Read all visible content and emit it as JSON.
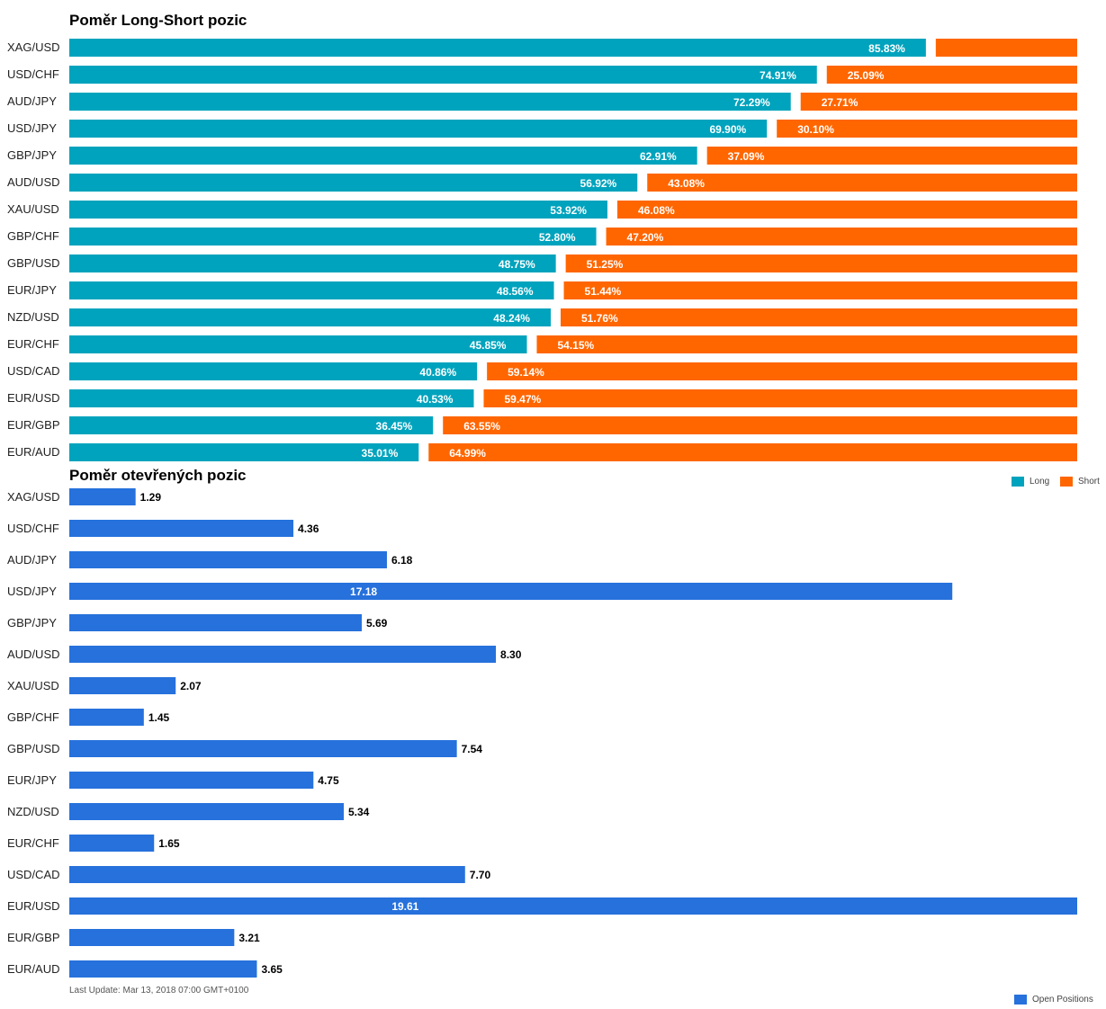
{
  "long_short": {
    "title": "Poměr Long-Short pozic",
    "legend": {
      "long_label": "Long",
      "short_label": "Short"
    },
    "colors": {
      "long": "#00A3BD",
      "short": "#FF6600"
    }
  },
  "open_positions": {
    "title": "Poměr otevřených pozic",
    "legend": {
      "label": "Open Positions"
    },
    "colors": {
      "bar": "#2671DC"
    }
  },
  "footer": {
    "last_update": "Last Update: Mar 13, 2018 07:00 GMT+0100"
  },
  "chart_data": [
    {
      "type": "bar",
      "orientation": "horizontal",
      "stacked": "percent",
      "title": "Poměr Long-Short pozic",
      "categories": [
        "XAG/USD",
        "USD/CHF",
        "AUD/JPY",
        "USD/JPY",
        "GBP/JPY",
        "AUD/USD",
        "XAU/USD",
        "GBP/CHF",
        "GBP/USD",
        "EUR/JPY",
        "NZD/USD",
        "EUR/CHF",
        "USD/CAD",
        "EUR/USD",
        "EUR/GBP",
        "EUR/AUD"
      ],
      "series": [
        {
          "name": "Long",
          "values": [
            85.83,
            74.91,
            72.29,
            69.9,
            62.91,
            56.92,
            53.92,
            52.8,
            48.75,
            48.56,
            48.24,
            45.85,
            40.86,
            40.53,
            36.45,
            35.01
          ],
          "labels": [
            "85.83%",
            "74.91%",
            "72.29%",
            "69.90%",
            "62.91%",
            "56.92%",
            "53.92%",
            "52.80%",
            "48.75%",
            "48.56%",
            "48.24%",
            "45.85%",
            "40.86%",
            "40.53%",
            "36.45%",
            "35.01%"
          ]
        },
        {
          "name": "Short",
          "values": [
            14.17,
            25.09,
            27.71,
            30.1,
            37.09,
            43.08,
            46.08,
            47.2,
            51.25,
            51.44,
            51.76,
            54.15,
            59.14,
            59.47,
            63.55,
            64.99
          ],
          "labels": [
            "",
            "25.09%",
            "27.71%",
            "30.10%",
            "37.09%",
            "43.08%",
            "46.08%",
            "47.20%",
            "51.25%",
            "51.44%",
            "51.76%",
            "54.15%",
            "59.14%",
            "59.47%",
            "63.55%",
            "64.99%"
          ]
        }
      ],
      "xlim": [
        0,
        100
      ],
      "grid": false,
      "legend_position": "bottom-right"
    },
    {
      "type": "bar",
      "orientation": "horizontal",
      "title": "Poměr otevřených pozic",
      "categories": [
        "XAG/USD",
        "USD/CHF",
        "AUD/JPY",
        "USD/JPY",
        "GBP/JPY",
        "AUD/USD",
        "XAU/USD",
        "GBP/CHF",
        "GBP/USD",
        "EUR/JPY",
        "NZD/USD",
        "EUR/CHF",
        "USD/CAD",
        "EUR/USD",
        "EUR/GBP",
        "EUR/AUD"
      ],
      "series": [
        {
          "name": "Open Positions",
          "values": [
            1.29,
            4.36,
            6.18,
            17.18,
            5.69,
            8.3,
            2.07,
            1.45,
            7.54,
            4.75,
            5.34,
            1.65,
            7.7,
            19.61,
            3.21,
            3.65
          ],
          "labels": [
            "1.29",
            "4.36",
            "6.18",
            "17.18",
            "5.69",
            "8.30",
            "2.07",
            "1.45",
            "7.54",
            "4.75",
            "5.34",
            "1.65",
            "7.70",
            "19.61",
            "3.21",
            "3.65"
          ]
        }
      ],
      "xlim": [
        0,
        19.61
      ],
      "grid": false,
      "legend_position": "bottom-right"
    }
  ]
}
